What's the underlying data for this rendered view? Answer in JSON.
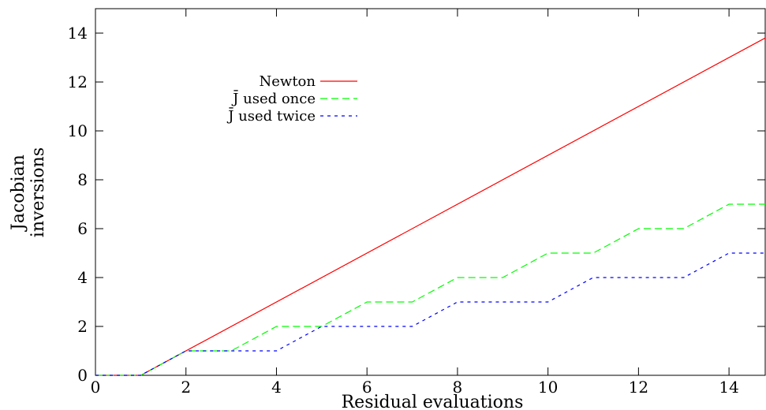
{
  "chart_data": {
    "type": "line",
    "title": "",
    "xlabel": "Residual evaluations",
    "ylabel_lines": [
      "Jacobian",
      "inversions"
    ],
    "xlim": [
      0,
      14.8
    ],
    "ylim": [
      0,
      15
    ],
    "xticks": [
      0,
      2,
      4,
      6,
      8,
      10,
      12,
      14
    ],
    "yticks": [
      0,
      2,
      4,
      6,
      8,
      10,
      12,
      14
    ],
    "grid": false,
    "legend_position": "top-left",
    "series": [
      {
        "name": "Newton",
        "color": "#ff0000",
        "dash": "solid",
        "points": [
          [
            0,
            0
          ],
          [
            1,
            0
          ],
          [
            14.8,
            13.8
          ]
        ]
      },
      {
        "name": "J̄ used once",
        "color": "#00ff00",
        "dash": "long-dash",
        "points": [
          [
            0,
            0
          ],
          [
            1,
            0
          ],
          [
            2,
            1
          ],
          [
            3,
            1
          ],
          [
            4,
            2
          ],
          [
            5,
            2
          ],
          [
            6,
            3
          ],
          [
            7,
            3
          ],
          [
            8,
            4
          ],
          [
            9,
            4
          ],
          [
            10,
            5
          ],
          [
            11,
            5
          ],
          [
            12,
            6
          ],
          [
            13,
            6
          ],
          [
            14,
            7
          ],
          [
            14.8,
            7
          ]
        ]
      },
      {
        "name": "J̄ used twice",
        "color": "#0000ff",
        "dash": "short-dash",
        "points": [
          [
            0,
            0
          ],
          [
            1,
            0
          ],
          [
            2,
            1
          ],
          [
            4,
            1
          ],
          [
            5,
            2
          ],
          [
            7,
            2
          ],
          [
            8,
            3
          ],
          [
            10,
            3
          ],
          [
            11,
            4
          ],
          [
            13,
            4
          ],
          [
            14,
            5
          ],
          [
            14.8,
            5
          ]
        ]
      }
    ]
  }
}
